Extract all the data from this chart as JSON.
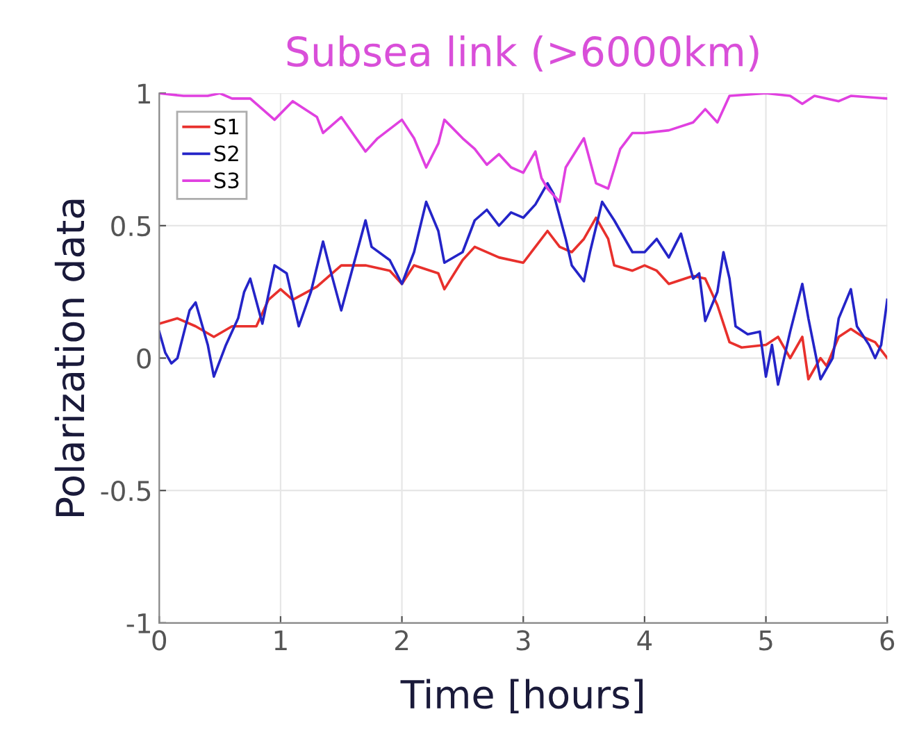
{
  "chart_data": {
    "type": "line",
    "title": "Subsea link (>6000km)",
    "xlabel": "Time [hours]",
    "ylabel": "Polarization data",
    "xlim": [
      0,
      6
    ],
    "ylim": [
      -1,
      1
    ],
    "xticks": [
      0,
      1,
      2,
      3,
      4,
      5,
      6
    ],
    "yticks": [
      -1,
      -0.5,
      0,
      0.5,
      1
    ],
    "grid": true,
    "legend": "top left",
    "line_style": "solid",
    "marker": "none",
    "series": [
      {
        "name": "S1",
        "color": "#e8302c",
        "x": [
          0,
          0.15,
          0.3,
          0.45,
          0.6,
          0.8,
          0.9,
          1.0,
          1.1,
          1.3,
          1.5,
          1.7,
          1.9,
          2.0,
          2.1,
          2.3,
          2.35,
          2.5,
          2.6,
          2.8,
          3.0,
          3.1,
          3.2,
          3.3,
          3.4,
          3.5,
          3.6,
          3.7,
          3.75,
          3.9,
          4.0,
          4.1,
          4.2,
          4.4,
          4.5,
          4.6,
          4.7,
          4.8,
          5.0,
          5.1,
          5.2,
          5.3,
          5.35,
          5.45,
          5.5,
          5.6,
          5.7,
          5.8,
          5.9,
          6.0
        ],
        "values": [
          0.13,
          0.15,
          0.12,
          0.08,
          0.12,
          0.12,
          0.22,
          0.26,
          0.22,
          0.27,
          0.35,
          0.35,
          0.33,
          0.28,
          0.35,
          0.32,
          0.26,
          0.37,
          0.42,
          0.38,
          0.36,
          0.42,
          0.48,
          0.42,
          0.4,
          0.45,
          0.53,
          0.45,
          0.35,
          0.33,
          0.35,
          0.33,
          0.28,
          0.31,
          0.3,
          0.2,
          0.06,
          0.04,
          0.05,
          0.08,
          0.0,
          0.08,
          -0.08,
          0.0,
          -0.03,
          0.08,
          0.11,
          0.08,
          0.06,
          0.0
        ]
      },
      {
        "name": "S2",
        "color": "#2424c8",
        "x": [
          0,
          0.05,
          0.1,
          0.15,
          0.25,
          0.3,
          0.4,
          0.45,
          0.55,
          0.65,
          0.7,
          0.75,
          0.85,
          0.95,
          1.05,
          1.15,
          1.25,
          1.35,
          1.4,
          1.5,
          1.6,
          1.7,
          1.75,
          1.9,
          2.0,
          2.1,
          2.2,
          2.3,
          2.35,
          2.5,
          2.6,
          2.7,
          2.8,
          2.9,
          3.0,
          3.1,
          3.2,
          3.25,
          3.35,
          3.4,
          3.5,
          3.55,
          3.65,
          3.75,
          3.9,
          4.0,
          4.1,
          4.2,
          4.3,
          4.4,
          4.45,
          4.5,
          4.6,
          4.65,
          4.7,
          4.75,
          4.85,
          4.95,
          5.0,
          5.05,
          5.1,
          5.2,
          5.3,
          5.35,
          5.45,
          5.55,
          5.6,
          5.7,
          5.75,
          5.85,
          5.9,
          5.95,
          6.0
        ],
        "values": [
          0.1,
          0.02,
          -0.02,
          0.0,
          0.18,
          0.21,
          0.05,
          -0.07,
          0.05,
          0.15,
          0.25,
          0.3,
          0.13,
          0.35,
          0.32,
          0.12,
          0.25,
          0.44,
          0.35,
          0.18,
          0.35,
          0.52,
          0.42,
          0.37,
          0.28,
          0.4,
          0.59,
          0.48,
          0.36,
          0.4,
          0.52,
          0.56,
          0.5,
          0.55,
          0.53,
          0.58,
          0.66,
          0.62,
          0.45,
          0.35,
          0.29,
          0.4,
          0.59,
          0.52,
          0.4,
          0.4,
          0.45,
          0.38,
          0.47,
          0.3,
          0.32,
          0.14,
          0.25,
          0.4,
          0.3,
          0.12,
          0.09,
          0.1,
          -0.07,
          0.05,
          -0.1,
          0.1,
          0.28,
          0.15,
          -0.08,
          0.0,
          0.15,
          0.26,
          0.12,
          0.05,
          0.0,
          0.05,
          0.22
        ]
      },
      {
        "name": "S3",
        "color": "#e040e0",
        "x": [
          0,
          0.2,
          0.4,
          0.5,
          0.6,
          0.75,
          0.95,
          1.1,
          1.3,
          1.35,
          1.5,
          1.7,
          1.8,
          2.0,
          2.1,
          2.2,
          2.3,
          2.35,
          2.5,
          2.6,
          2.7,
          2.8,
          2.9,
          3.0,
          3.1,
          3.15,
          3.2,
          3.3,
          3.35,
          3.5,
          3.6,
          3.7,
          3.8,
          3.9,
          4.0,
          4.2,
          4.4,
          4.5,
          4.6,
          4.7,
          5.0,
          5.2,
          5.3,
          5.4,
          5.6,
          5.7,
          6.0
        ],
        "values": [
          1.0,
          0.99,
          0.99,
          1.0,
          0.98,
          0.98,
          0.9,
          0.97,
          0.91,
          0.85,
          0.91,
          0.78,
          0.83,
          0.9,
          0.83,
          0.72,
          0.81,
          0.9,
          0.83,
          0.79,
          0.73,
          0.77,
          0.72,
          0.7,
          0.78,
          0.68,
          0.64,
          0.59,
          0.72,
          0.83,
          0.66,
          0.64,
          0.79,
          0.85,
          0.85,
          0.86,
          0.89,
          0.94,
          0.89,
          0.99,
          1.0,
          0.99,
          0.96,
          0.99,
          0.97,
          0.99,
          0.98
        ]
      }
    ]
  }
}
